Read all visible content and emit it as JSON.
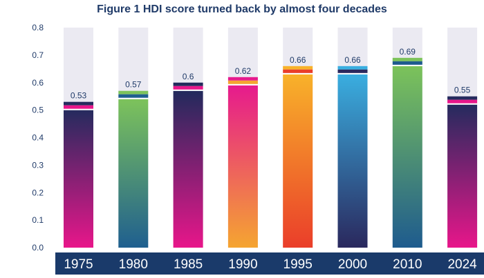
{
  "chart_data": {
    "type": "bar",
    "title": "Figure 1 HDI score turned back by almost four decades",
    "categories": [
      "1975",
      "1980",
      "1985",
      "1990",
      "1995",
      "2000",
      "2010",
      "2024"
    ],
    "values": [
      0.53,
      0.57,
      0.6,
      0.62,
      0.66,
      0.66,
      0.69,
      0.55
    ],
    "value_labels": [
      "0.53",
      "0.57",
      "0.6",
      "0.62",
      "0.66",
      "0.66",
      "0.69",
      "0.55"
    ],
    "ylim": [
      0,
      0.8
    ],
    "yticks": [
      "0.0",
      "0.1",
      "0.2",
      "0.3",
      "0.4",
      "0.5",
      "0.6",
      "0.7",
      "0.8"
    ],
    "xlabel": "",
    "ylabel": "",
    "grid": false,
    "bar_gradients": [
      [
        "#e8168a",
        "#252b5e"
      ],
      [
        "#1f5f8f",
        "#7dc35b"
      ],
      [
        "#e8168a",
        "#222a5c"
      ],
      [
        "#f5a531",
        "#e61a8d"
      ],
      [
        "#ea3e2a",
        "#f8b22a"
      ],
      [
        "#2a285d",
        "#3aaee0"
      ],
      [
        "#1e5b8e",
        "#7cc35a"
      ],
      [
        "#e8168a",
        "#252b5e"
      ]
    ],
    "colors": {
      "title": "#1f3a68",
      "track": "#ebeaf2",
      "axis_band": "#1a3a6a",
      "tick_text": "#1f3a68"
    }
  }
}
